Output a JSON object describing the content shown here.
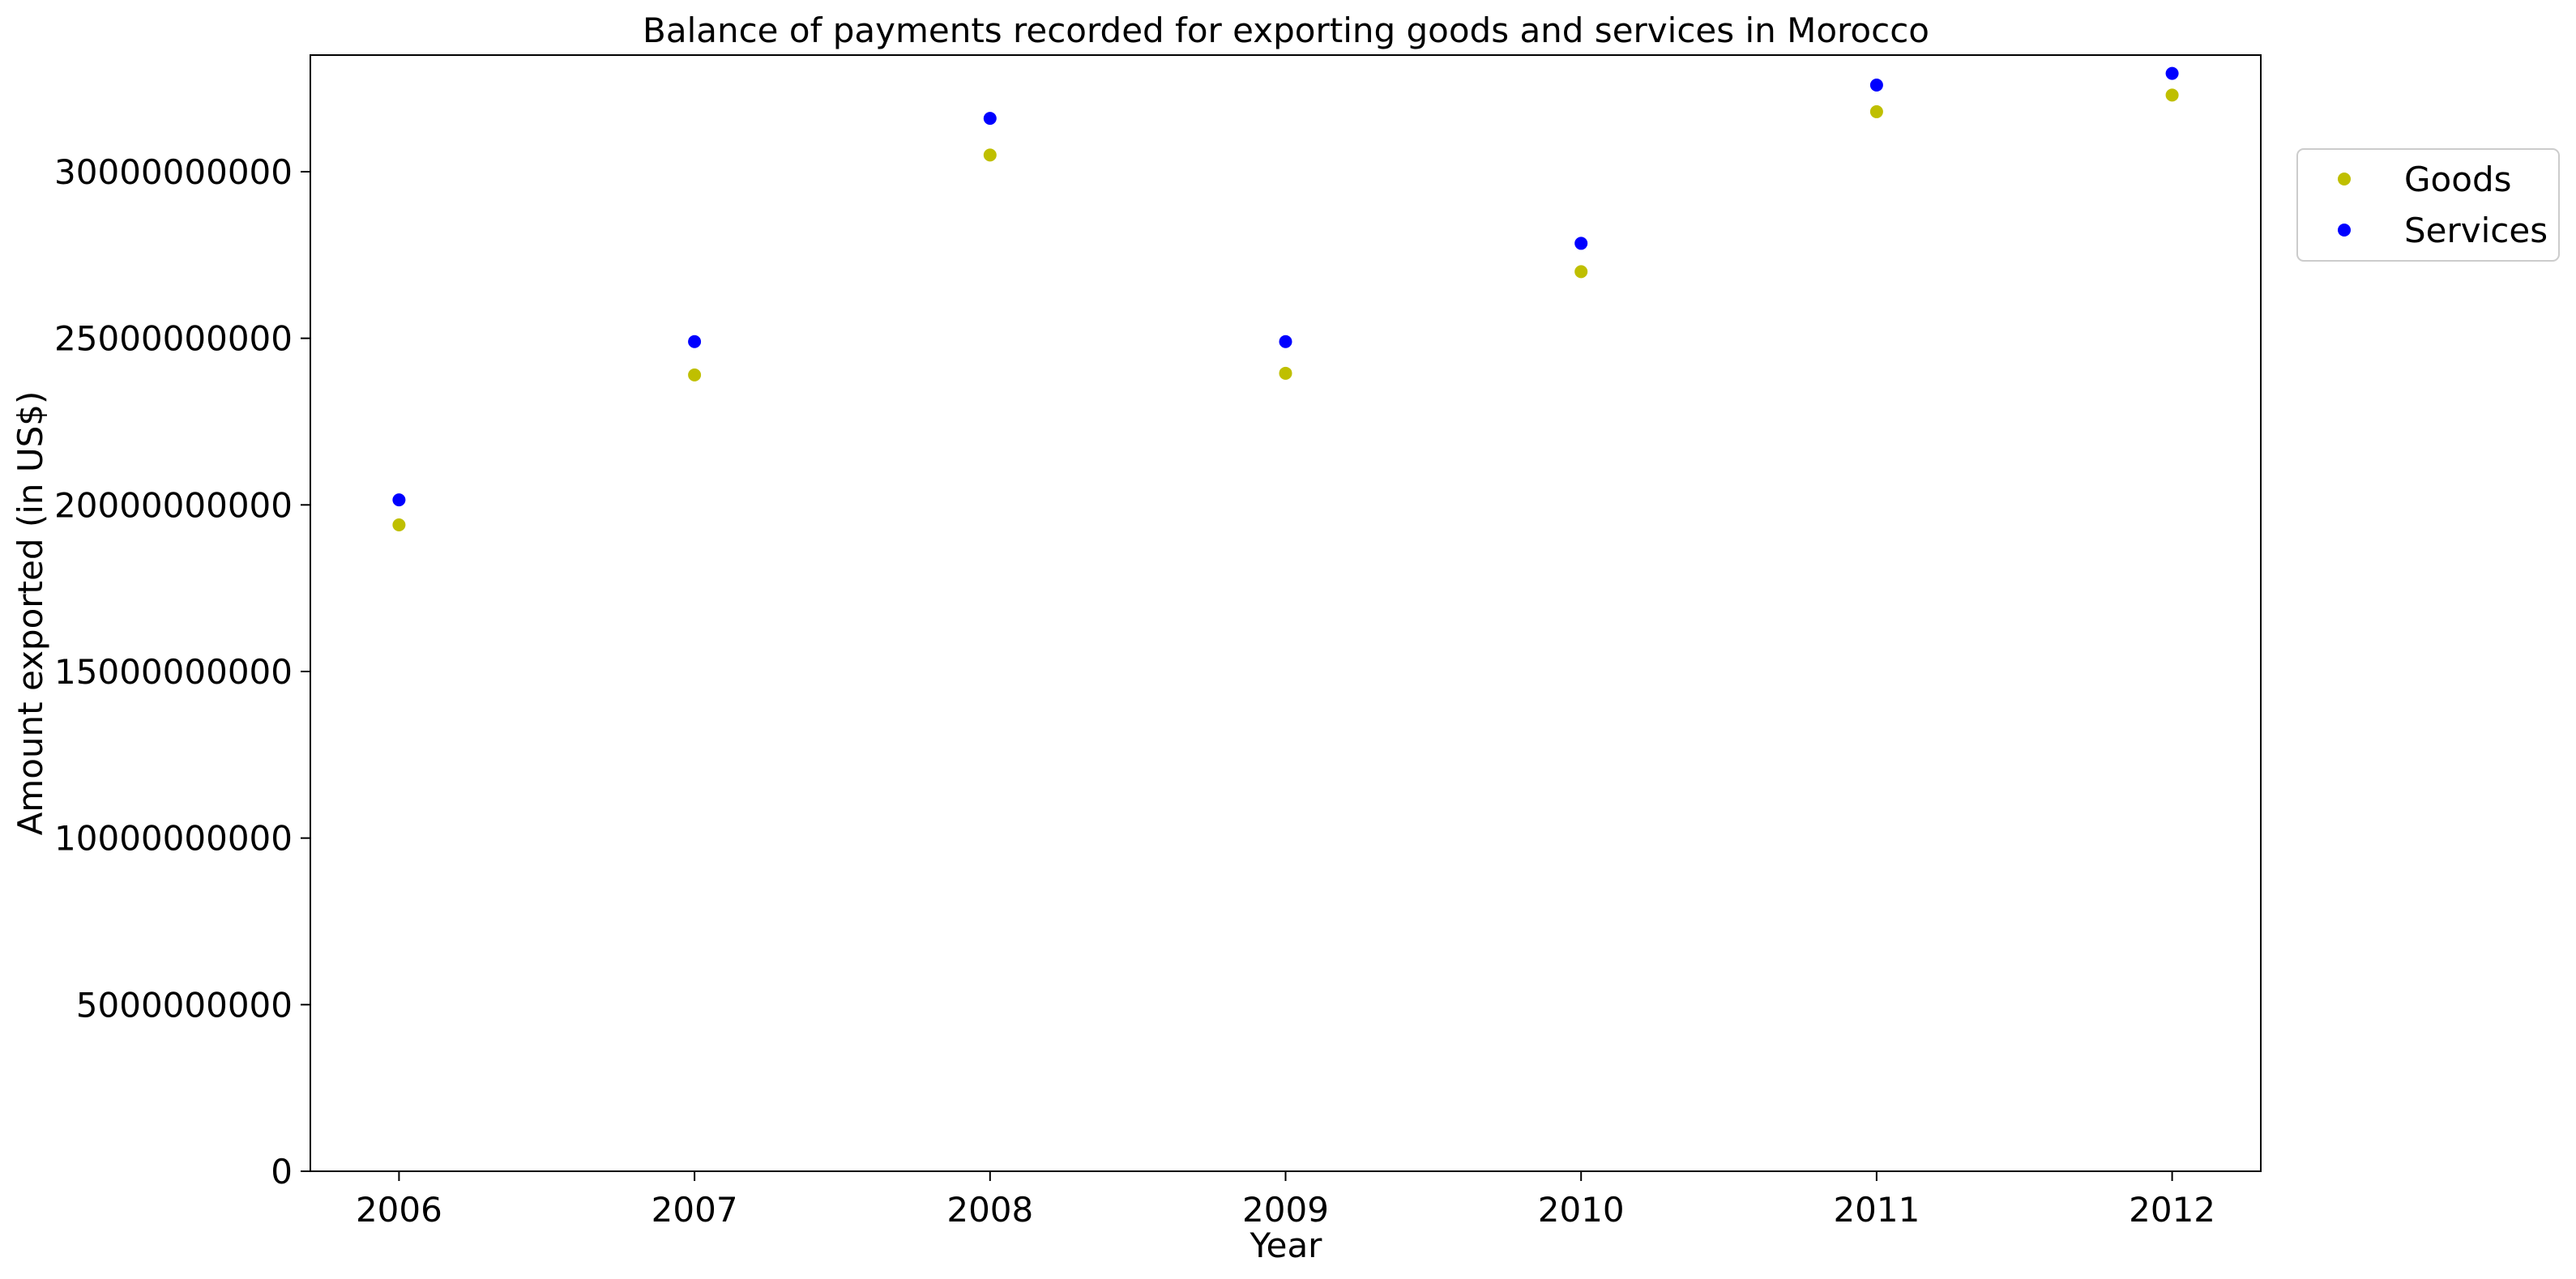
{
  "chart_data": {
    "type": "scatter",
    "title": "Balance of payments recorded for exporting goods and services in Morocco",
    "xlabel": "Year",
    "ylabel": "Amount exported (in US$)",
    "x": [
      "2006",
      "2007",
      "2008",
      "2009",
      "2010",
      "2011",
      "2012"
    ],
    "xlim": [
      2005.7,
      2012.3
    ],
    "ylim": [
      0,
      33500000000
    ],
    "yticks": [
      0,
      5000000000,
      10000000000,
      15000000000,
      20000000000,
      25000000000,
      30000000000
    ],
    "ytick_labels": [
      "0",
      "5000000000",
      "10000000000",
      "15000000000",
      "20000000000",
      "25000000000",
      "30000000000"
    ],
    "grid": false,
    "legend_position": "upper right, outside plot",
    "series": [
      {
        "name": "Goods",
        "color": "#bfbf00",
        "values": [
          19400000000,
          23900000000,
          30500000000,
          23950000000,
          27000000000,
          31800000000,
          32300000000
        ]
      },
      {
        "name": "Services",
        "color": "#0000ff",
        "values": [
          20150000000,
          24900000000,
          31600000000,
          24900000000,
          27850000000,
          32600000000,
          32950000000
        ]
      }
    ]
  }
}
